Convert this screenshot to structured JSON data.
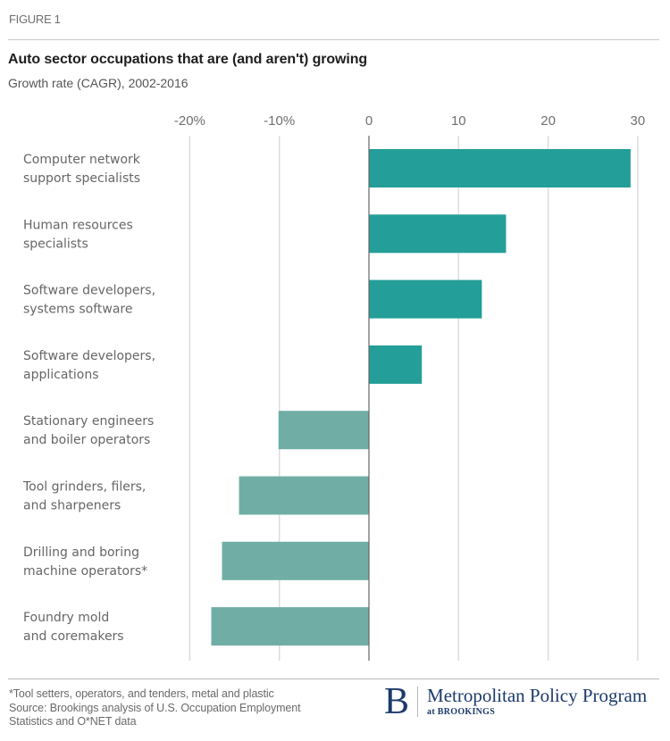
{
  "figure_label": "FIGURE 1",
  "footnote": {
    "lines": [
      "*Tool setters, operators, and tenders, metal and plastic",
      "Source: Brookings analysis of U.S. Occupation Employment",
      "Statistics and O*NET data"
    ]
  },
  "logo": {
    "letter": "B",
    "name": "Metropolitan Policy Program",
    "sub": "at BROOKINGS"
  },
  "colors": {
    "positive": "#239e98",
    "negative": "#70aea5",
    "gridline": "#dcdcdc",
    "zero_line": "#666666",
    "logo": "#1c3a6b"
  },
  "chart_data": {
    "type": "bar",
    "orientation": "horizontal",
    "title": "Auto sector occupations that are (and aren't) growing",
    "subtitle": "Growth rate (CAGR), 2002-2016",
    "xlabel": "",
    "ylabel": "",
    "xlim": [
      -20,
      30
    ],
    "xticks": [
      -20,
      -10,
      0,
      10,
      20,
      30
    ],
    "xtick_labels": [
      "-20%",
      "-10%",
      "0",
      "10",
      "20",
      "30"
    ],
    "grid": true,
    "legend": "none",
    "categories": [
      [
        "Computer network",
        "support specialists"
      ],
      [
        "Human resources",
        "specialists"
      ],
      [
        "Software developers,",
        "systems software"
      ],
      [
        "Software developers,",
        "applications"
      ],
      [
        "Stationary engineers",
        "and boiler operators"
      ],
      [
        "Tool grinders, filers,",
        "and sharpeners"
      ],
      [
        "Drilling and boring",
        "machine operators*"
      ],
      [
        "Foundry mold",
        "and coremakers"
      ]
    ],
    "values": [
      29.2,
      15.3,
      12.6,
      5.9,
      -10.1,
      -14.5,
      -16.4,
      -17.6
    ],
    "units": "percent"
  }
}
